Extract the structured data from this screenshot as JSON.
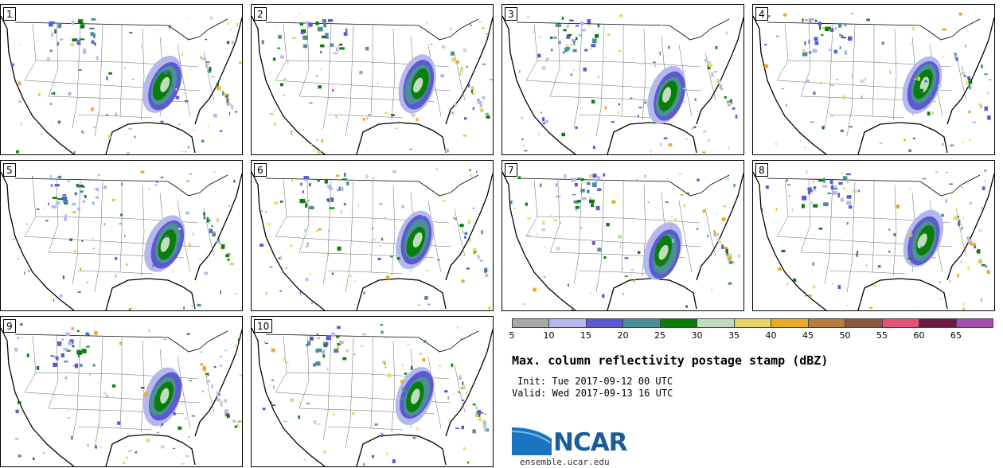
{
  "panels": [
    {
      "label": "1"
    },
    {
      "label": "2"
    },
    {
      "label": "3"
    },
    {
      "label": "4"
    },
    {
      "label": "5"
    },
    {
      "label": "6"
    },
    {
      "label": "7"
    },
    {
      "label": "8"
    },
    {
      "label": "9"
    },
    {
      "label": "10"
    }
  ],
  "colorbar": {
    "colors": [
      "#a8a8a8",
      "#b4b8ec",
      "#5a5ad2",
      "#4e8e96",
      "#0a7e0a",
      "#c0dcbc",
      "#e8d66a",
      "#e8aa28",
      "#b87c3c",
      "#8a583e",
      "#e8507c",
      "#6a1a40",
      "#a24eaa"
    ],
    "ticks": [
      "5",
      "10",
      "15",
      "20",
      "25",
      "30",
      "35",
      "40",
      "45",
      "50",
      "55",
      "60",
      "65"
    ]
  },
  "title": "Max. column reflectivity postage stamp (dBZ)",
  "init": "Init: Tue 2017-09-12 00 UTC",
  "valid": "Valid: Wed 2017-09-13 16 UTC",
  "logo": {
    "text": "NCAR",
    "url": "ensemble.ucar.edu"
  }
}
